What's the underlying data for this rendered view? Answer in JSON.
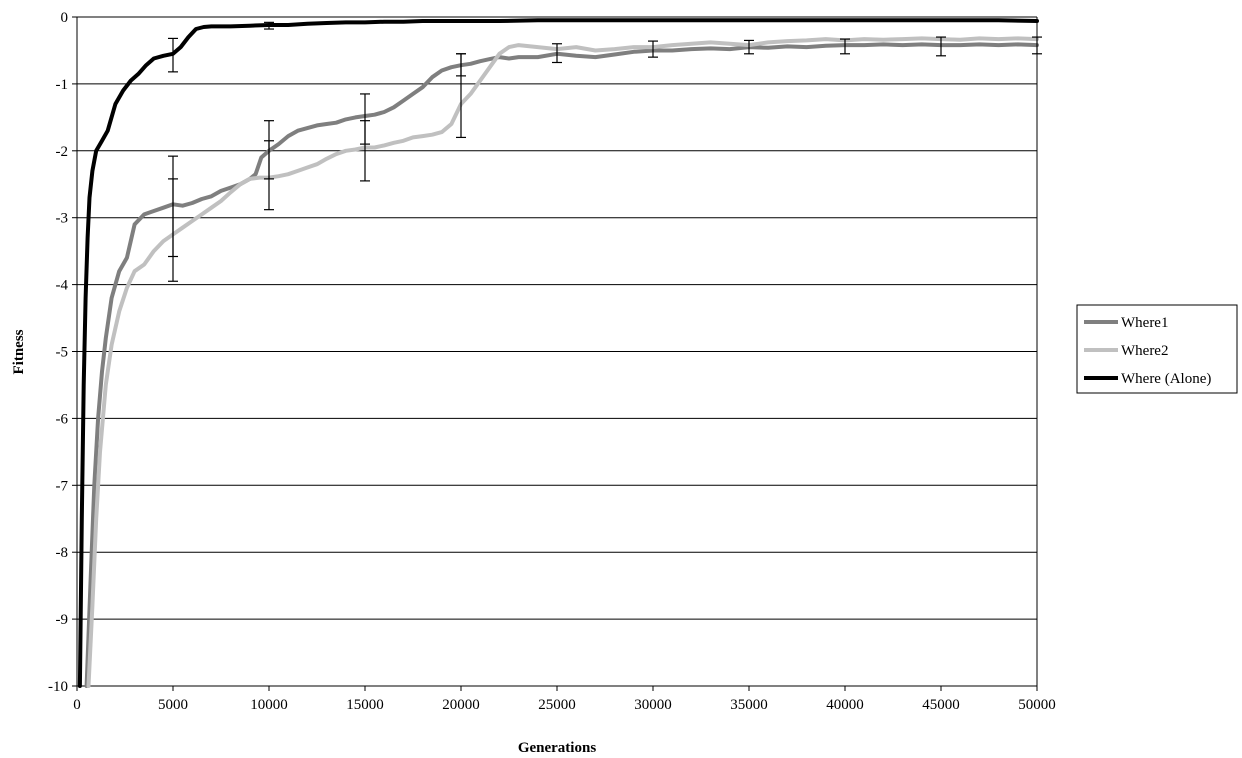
{
  "chart_data": {
    "type": "line",
    "title": "",
    "xlabel": "Generations",
    "ylabel": "Fitness",
    "xlim": [
      0,
      50000
    ],
    "ylim": [
      -10,
      0
    ],
    "xticks": [
      0,
      5000,
      10000,
      15000,
      20000,
      25000,
      30000,
      35000,
      40000,
      45000,
      50000
    ],
    "yticks": [
      0,
      -1,
      -2,
      -3,
      -4,
      -5,
      -6,
      -7,
      -8,
      -9,
      -10
    ],
    "grid": "horizontal",
    "legend_position": "right",
    "series": [
      {
        "name": "Where1",
        "color": "#7f7f7f",
        "points": [
          [
            500,
            -10
          ],
          [
            700,
            -8.5
          ],
          [
            900,
            -7
          ],
          [
            1100,
            -6
          ],
          [
            1300,
            -5.3
          ],
          [
            1500,
            -4.8
          ],
          [
            1800,
            -4.2
          ],
          [
            2200,
            -3.8
          ],
          [
            2600,
            -3.6
          ],
          [
            3000,
            -3.1
          ],
          [
            3500,
            -2.95
          ],
          [
            4000,
            -2.9
          ],
          [
            4500,
            -2.85
          ],
          [
            5000,
            -2.8
          ],
          [
            5500,
            -2.82
          ],
          [
            6000,
            -2.78
          ],
          [
            6500,
            -2.72
          ],
          [
            7000,
            -2.68
          ],
          [
            7500,
            -2.6
          ],
          [
            8000,
            -2.55
          ],
          [
            8500,
            -2.5
          ],
          [
            9000,
            -2.42
          ],
          [
            9300,
            -2.35
          ],
          [
            9600,
            -2.1
          ],
          [
            10000,
            -2.0
          ],
          [
            10500,
            -1.9
          ],
          [
            11000,
            -1.78
          ],
          [
            11500,
            -1.7
          ],
          [
            12000,
            -1.66
          ],
          [
            12500,
            -1.62
          ],
          [
            13000,
            -1.6
          ],
          [
            13500,
            -1.58
          ],
          [
            14000,
            -1.53
          ],
          [
            14500,
            -1.5
          ],
          [
            15000,
            -1.48
          ],
          [
            15500,
            -1.46
          ],
          [
            16000,
            -1.42
          ],
          [
            16500,
            -1.35
          ],
          [
            17000,
            -1.25
          ],
          [
            17500,
            -1.15
          ],
          [
            18000,
            -1.05
          ],
          [
            18500,
            -0.9
          ],
          [
            19000,
            -0.8
          ],
          [
            19500,
            -0.75
          ],
          [
            20000,
            -0.72
          ],
          [
            20500,
            -0.7
          ],
          [
            21000,
            -0.66
          ],
          [
            21500,
            -0.63
          ],
          [
            22000,
            -0.6
          ],
          [
            22500,
            -0.62
          ],
          [
            23000,
            -0.6
          ],
          [
            24000,
            -0.6
          ],
          [
            25000,
            -0.55
          ],
          [
            26000,
            -0.58
          ],
          [
            27000,
            -0.6
          ],
          [
            28000,
            -0.56
          ],
          [
            29000,
            -0.52
          ],
          [
            30000,
            -0.5
          ],
          [
            31000,
            -0.5
          ],
          [
            32000,
            -0.48
          ],
          [
            33000,
            -0.47
          ],
          [
            34000,
            -0.48
          ],
          [
            35000,
            -0.45
          ],
          [
            36000,
            -0.46
          ],
          [
            37000,
            -0.44
          ],
          [
            38000,
            -0.45
          ],
          [
            39000,
            -0.43
          ],
          [
            40000,
            -0.42
          ],
          [
            41000,
            -0.42
          ],
          [
            42000,
            -0.41
          ],
          [
            43000,
            -0.42
          ],
          [
            44000,
            -0.41
          ],
          [
            45000,
            -0.42
          ],
          [
            46000,
            -0.42
          ],
          [
            47000,
            -0.41
          ],
          [
            48000,
            -0.42
          ],
          [
            49000,
            -0.41
          ],
          [
            50000,
            -0.42
          ]
        ]
      },
      {
        "name": "Where2",
        "color": "#c0c0c0",
        "points": [
          [
            600,
            -10
          ],
          [
            800,
            -8.8
          ],
          [
            1000,
            -7.5
          ],
          [
            1200,
            -6.5
          ],
          [
            1500,
            -5.5
          ],
          [
            1800,
            -4.9
          ],
          [
            2200,
            -4.4
          ],
          [
            2600,
            -4.05
          ],
          [
            3000,
            -3.8
          ],
          [
            3500,
            -3.7
          ],
          [
            4000,
            -3.5
          ],
          [
            4500,
            -3.35
          ],
          [
            5000,
            -3.25
          ],
          [
            5500,
            -3.15
          ],
          [
            6000,
            -3.05
          ],
          [
            6500,
            -2.95
          ],
          [
            7000,
            -2.85
          ],
          [
            7500,
            -2.75
          ],
          [
            8000,
            -2.62
          ],
          [
            8500,
            -2.5
          ],
          [
            9000,
            -2.42
          ],
          [
            9500,
            -2.4
          ],
          [
            10000,
            -2.4
          ],
          [
            10500,
            -2.38
          ],
          [
            11000,
            -2.35
          ],
          [
            11500,
            -2.3
          ],
          [
            12000,
            -2.25
          ],
          [
            12500,
            -2.2
          ],
          [
            13000,
            -2.12
          ],
          [
            13500,
            -2.05
          ],
          [
            14000,
            -2.0
          ],
          [
            14500,
            -1.98
          ],
          [
            15000,
            -1.95
          ],
          [
            15500,
            -1.95
          ],
          [
            16000,
            -1.92
          ],
          [
            16500,
            -1.88
          ],
          [
            17000,
            -1.85
          ],
          [
            17500,
            -1.8
          ],
          [
            18000,
            -1.78
          ],
          [
            18500,
            -1.76
          ],
          [
            19000,
            -1.72
          ],
          [
            19500,
            -1.6
          ],
          [
            20000,
            -1.3
          ],
          [
            20500,
            -1.15
          ],
          [
            21000,
            -0.95
          ],
          [
            21500,
            -0.75
          ],
          [
            22000,
            -0.55
          ],
          [
            22500,
            -0.45
          ],
          [
            23000,
            -0.42
          ],
          [
            24000,
            -0.45
          ],
          [
            25000,
            -0.48
          ],
          [
            26000,
            -0.45
          ],
          [
            27000,
            -0.5
          ],
          [
            28000,
            -0.48
          ],
          [
            29000,
            -0.45
          ],
          [
            30000,
            -0.45
          ],
          [
            31000,
            -0.42
          ],
          [
            32000,
            -0.4
          ],
          [
            33000,
            -0.38
          ],
          [
            34000,
            -0.4
          ],
          [
            35000,
            -0.42
          ],
          [
            36000,
            -0.38
          ],
          [
            37000,
            -0.36
          ],
          [
            38000,
            -0.35
          ],
          [
            39000,
            -0.33
          ],
          [
            40000,
            -0.35
          ],
          [
            41000,
            -0.33
          ],
          [
            42000,
            -0.34
          ],
          [
            43000,
            -0.33
          ],
          [
            44000,
            -0.32
          ],
          [
            45000,
            -0.33
          ],
          [
            46000,
            -0.34
          ],
          [
            47000,
            -0.32
          ],
          [
            48000,
            -0.33
          ],
          [
            49000,
            -0.32
          ],
          [
            50000,
            -0.33
          ]
        ]
      },
      {
        "name": "Where (Alone)",
        "color": "#000000",
        "points": [
          [
            150,
            -10
          ],
          [
            250,
            -7.5
          ],
          [
            350,
            -5.5
          ],
          [
            450,
            -4.2
          ],
          [
            550,
            -3.3
          ],
          [
            650,
            -2.7
          ],
          [
            800,
            -2.3
          ],
          [
            1000,
            -2.0
          ],
          [
            1300,
            -1.85
          ],
          [
            1600,
            -1.7
          ],
          [
            2000,
            -1.3
          ],
          [
            2400,
            -1.1
          ],
          [
            2800,
            -0.95
          ],
          [
            3200,
            -0.85
          ],
          [
            3600,
            -0.72
          ],
          [
            4000,
            -0.62
          ],
          [
            4500,
            -0.58
          ],
          [
            5000,
            -0.55
          ],
          [
            5400,
            -0.45
          ],
          [
            5800,
            -0.3
          ],
          [
            6200,
            -0.18
          ],
          [
            6600,
            -0.15
          ],
          [
            7000,
            -0.14
          ],
          [
            8000,
            -0.14
          ],
          [
            9000,
            -0.13
          ],
          [
            10000,
            -0.12
          ],
          [
            11000,
            -0.12
          ],
          [
            12000,
            -0.1
          ],
          [
            13000,
            -0.09
          ],
          [
            14000,
            -0.08
          ],
          [
            15000,
            -0.08
          ],
          [
            16000,
            -0.07
          ],
          [
            17000,
            -0.07
          ],
          [
            18000,
            -0.06
          ],
          [
            19000,
            -0.06
          ],
          [
            20000,
            -0.06
          ],
          [
            22000,
            -0.06
          ],
          [
            24000,
            -0.05
          ],
          [
            26000,
            -0.05
          ],
          [
            28000,
            -0.05
          ],
          [
            30000,
            -0.05
          ],
          [
            32000,
            -0.05
          ],
          [
            34000,
            -0.05
          ],
          [
            36000,
            -0.05
          ],
          [
            38000,
            -0.05
          ],
          [
            40000,
            -0.05
          ],
          [
            42000,
            -0.05
          ],
          [
            44000,
            -0.05
          ],
          [
            46000,
            -0.05
          ],
          [
            48000,
            -0.05
          ],
          [
            50000,
            -0.06
          ]
        ]
      }
    ],
    "error_bars": [
      {
        "x": 5000,
        "low": -0.82,
        "high": -0.32
      },
      {
        "x": 5000,
        "low": -3.95,
        "high": -2.08
      },
      {
        "x": 5000,
        "low": -3.58,
        "high": -2.42
      },
      {
        "x": 10000,
        "low": -0.18,
        "high": -0.08
      },
      {
        "x": 10000,
        "low": -2.88,
        "high": -1.55
      },
      {
        "x": 10000,
        "low": -2.42,
        "high": -1.85
      },
      {
        "x": 15000,
        "low": -2.45,
        "high": -1.15
      },
      {
        "x": 15000,
        "low": -1.9,
        "high": -1.55
      },
      {
        "x": 20000,
        "low": -1.8,
        "high": -0.55
      },
      {
        "x": 20000,
        "low": -0.88,
        "high": -0.55
      },
      {
        "x": 25000,
        "low": -0.68,
        "high": -0.4
      },
      {
        "x": 30000,
        "low": -0.6,
        "high": -0.36
      },
      {
        "x": 35000,
        "low": -0.55,
        "high": -0.35
      },
      {
        "x": 40000,
        "low": -0.55,
        "high": -0.33
      },
      {
        "x": 45000,
        "low": -0.58,
        "high": -0.3
      },
      {
        "x": 50000,
        "low": -0.55,
        "high": -0.3
      }
    ]
  }
}
